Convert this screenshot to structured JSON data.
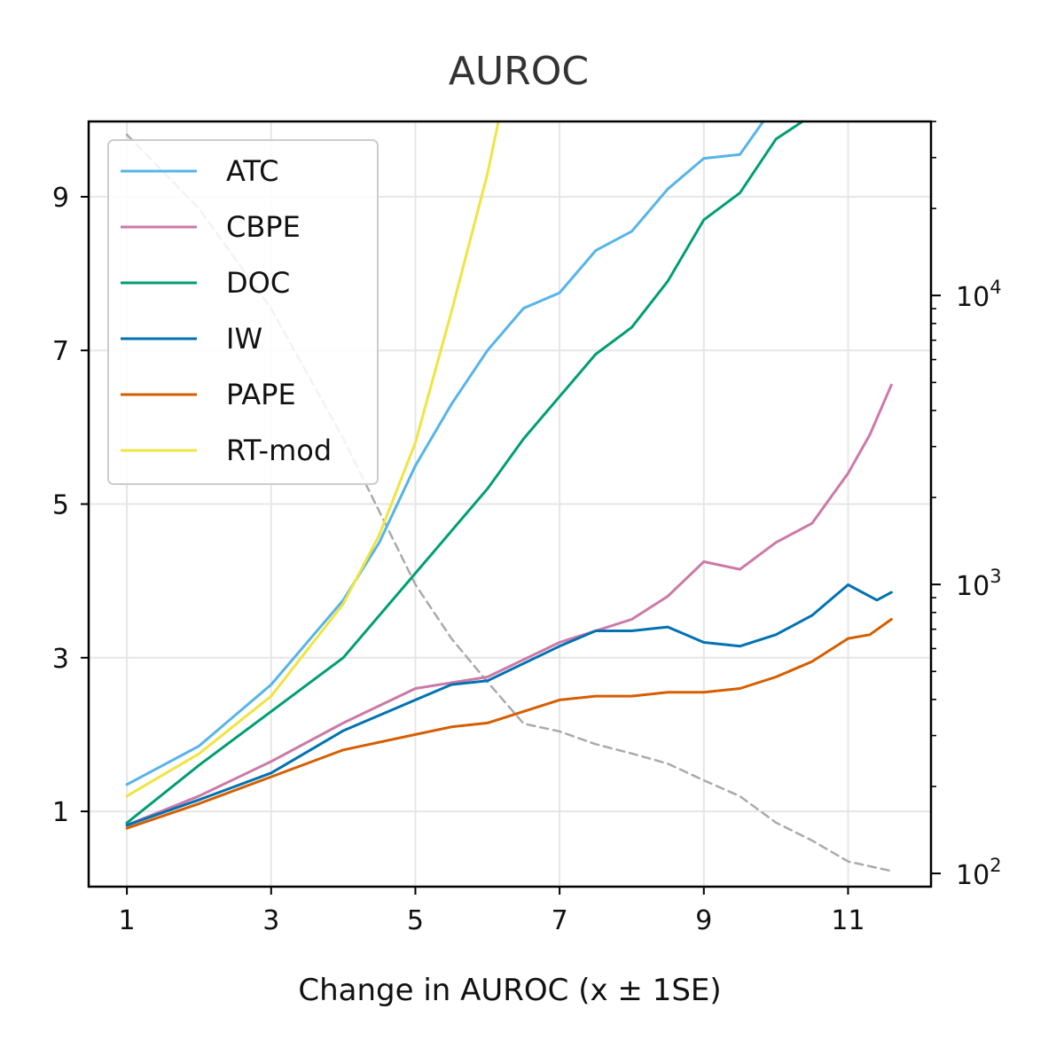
{
  "chart_data": {
    "type": "line",
    "title": "AUROC",
    "xlabel": "Change in AUROC (x ± 1SE)",
    "ylabel": "",
    "xlim": [
      0.47,
      12.15
    ],
    "ylim": [
      0.02,
      9.98
    ],
    "x_ticks": [
      1,
      3,
      5,
      7,
      9,
      11
    ],
    "y_ticks": [
      1,
      3,
      5,
      7,
      9
    ],
    "grid": true,
    "legend_position": "upper-left",
    "secondary_axis": {
      "scale": "log",
      "range": [
        90,
        40000
      ],
      "major_ticks": [
        100,
        1000,
        10000
      ],
      "major_tick_labels": [
        "10",
        "10",
        "10"
      ],
      "major_tick_exponents": [
        "2",
        "3",
        "4"
      ],
      "minor_ticks": [
        200,
        300,
        400,
        500,
        600,
        700,
        800,
        900,
        2000,
        3000,
        4000,
        5000,
        6000,
        7000,
        8000,
        9000,
        20000,
        30000,
        40000
      ]
    },
    "series": [
      {
        "name": "ATC",
        "color": "#56b4e9",
        "points": [
          [
            1,
            1.35
          ],
          [
            2,
            1.85
          ],
          [
            3,
            2.65
          ],
          [
            4,
            3.75
          ],
          [
            4.5,
            4.5
          ],
          [
            5,
            5.5
          ],
          [
            5.5,
            6.3
          ],
          [
            6,
            7.0
          ],
          [
            6.5,
            7.55
          ],
          [
            7,
            7.75
          ],
          [
            7.5,
            8.3
          ],
          [
            8,
            8.55
          ],
          [
            8.5,
            9.1
          ],
          [
            9,
            9.5
          ],
          [
            9.5,
            9.55
          ],
          [
            9.8,
            9.95
          ],
          [
            10.1,
            10.3
          ]
        ]
      },
      {
        "name": "CBPE",
        "color": "#cc79a7",
        "points": [
          [
            1,
            0.82
          ],
          [
            2,
            1.2
          ],
          [
            3,
            1.65
          ],
          [
            4,
            2.15
          ],
          [
            5,
            2.6
          ],
          [
            6,
            2.75
          ],
          [
            7,
            3.2
          ],
          [
            8,
            3.5
          ],
          [
            8.5,
            3.8
          ],
          [
            9,
            4.25
          ],
          [
            9.5,
            4.15
          ],
          [
            10,
            4.5
          ],
          [
            10.5,
            4.75
          ],
          [
            11,
            5.4
          ],
          [
            11.3,
            5.9
          ],
          [
            11.6,
            6.55
          ]
        ]
      },
      {
        "name": "DOC",
        "color": "#009e73",
        "points": [
          [
            1,
            0.85
          ],
          [
            2,
            1.6
          ],
          [
            3,
            2.3
          ],
          [
            4,
            3.0
          ],
          [
            5,
            4.1
          ],
          [
            6,
            5.2
          ],
          [
            6.5,
            5.85
          ],
          [
            7,
            6.4
          ],
          [
            7.5,
            6.95
          ],
          [
            8,
            7.3
          ],
          [
            8.5,
            7.9
          ],
          [
            9,
            8.7
          ],
          [
            9.5,
            9.05
          ],
          [
            10,
            9.75
          ],
          [
            10.4,
            10.0
          ],
          [
            10.6,
            10.2
          ]
        ]
      },
      {
        "name": "IW",
        "color": "#0072b2",
        "points": [
          [
            1,
            0.82
          ],
          [
            2,
            1.15
          ],
          [
            3,
            1.5
          ],
          [
            4,
            2.05
          ],
          [
            5,
            2.45
          ],
          [
            5.5,
            2.65
          ],
          [
            6,
            2.7
          ],
          [
            7,
            3.15
          ],
          [
            7.5,
            3.35
          ],
          [
            8,
            3.35
          ],
          [
            8.5,
            3.4
          ],
          [
            9,
            3.2
          ],
          [
            9.5,
            3.15
          ],
          [
            10,
            3.3
          ],
          [
            10.5,
            3.55
          ],
          [
            11,
            3.95
          ],
          [
            11.4,
            3.75
          ],
          [
            11.6,
            3.85
          ]
        ]
      },
      {
        "name": "PAPE",
        "color": "#d55e00",
        "points": [
          [
            1,
            0.78
          ],
          [
            2,
            1.1
          ],
          [
            3,
            1.45
          ],
          [
            4,
            1.8
          ],
          [
            5,
            2.0
          ],
          [
            5.5,
            2.1
          ],
          [
            6,
            2.15
          ],
          [
            7,
            2.45
          ],
          [
            7.5,
            2.5
          ],
          [
            8,
            2.5
          ],
          [
            8.5,
            2.55
          ],
          [
            9,
            2.55
          ],
          [
            9.5,
            2.6
          ],
          [
            10,
            2.75
          ],
          [
            10.5,
            2.95
          ],
          [
            11,
            3.25
          ],
          [
            11.3,
            3.3
          ],
          [
            11.6,
            3.5
          ]
        ]
      },
      {
        "name": "RT-mod",
        "color": "#f0e442",
        "points": [
          [
            1,
            1.2
          ],
          [
            2,
            1.75
          ],
          [
            3,
            2.5
          ],
          [
            4,
            3.7
          ],
          [
            4.5,
            4.6
          ],
          [
            5,
            5.8
          ],
          [
            5.5,
            7.5
          ],
          [
            6,
            9.3
          ],
          [
            6.2,
            10.2
          ]
        ]
      }
    ],
    "reference_series": {
      "axis": "secondary",
      "style": "dashed",
      "color": "#aaaaaa",
      "points": [
        [
          1,
          36000
        ],
        [
          2,
          20000
        ],
        [
          3,
          9000
        ],
        [
          4,
          3200
        ],
        [
          5,
          1000
        ],
        [
          5.5,
          650
        ],
        [
          6,
          460
        ],
        [
          6.5,
          330
        ],
        [
          7,
          310
        ],
        [
          7.5,
          280
        ],
        [
          8,
          260
        ],
        [
          8.5,
          240
        ],
        [
          9,
          210
        ],
        [
          9.5,
          185
        ],
        [
          10,
          150
        ],
        [
          10.5,
          130
        ],
        [
          11,
          110
        ],
        [
          11.6,
          102
        ]
      ]
    }
  }
}
